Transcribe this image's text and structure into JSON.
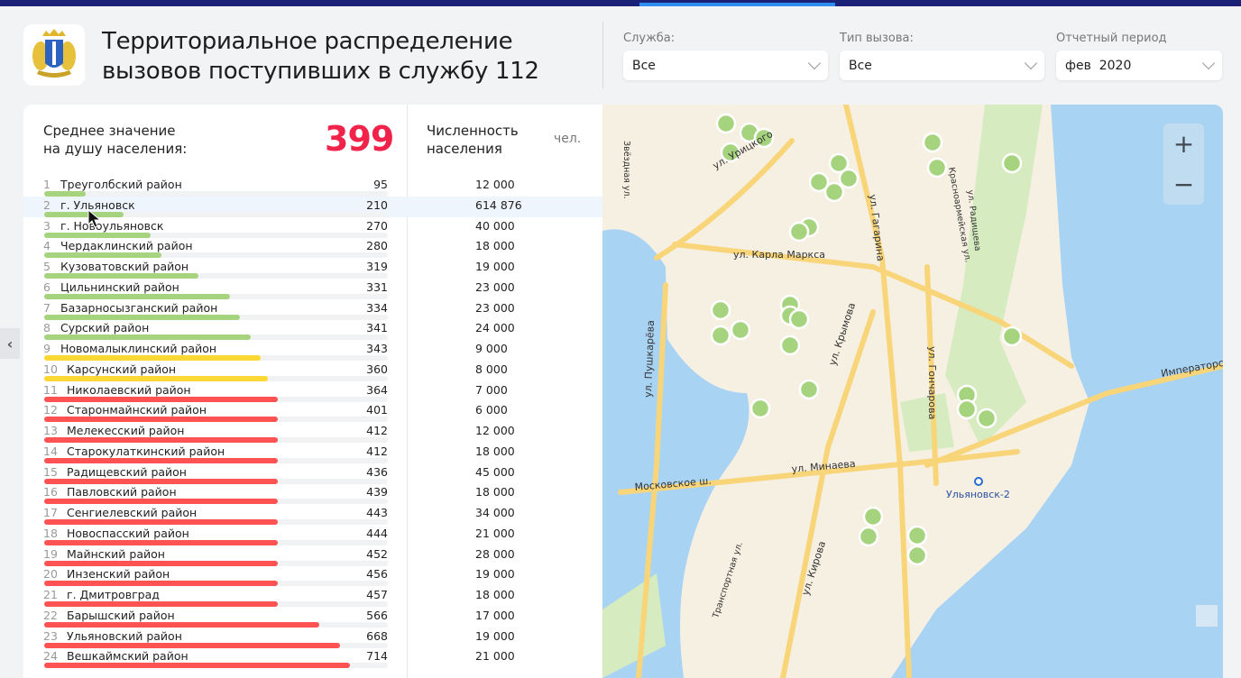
{
  "header": {
    "title_line1": "Территориальное распределение",
    "title_line2": "вызовов поступивших в службу 112"
  },
  "filters": [
    {
      "label": "Служба:",
      "value": "Все"
    },
    {
      "label": "Тип вызова:",
      "value": "Все"
    },
    {
      "label": "Отчетный период",
      "value": "фев  2020"
    }
  ],
  "summary": {
    "label_line1": "Среднее значение",
    "label_line2": "на душу населения:",
    "value": "399",
    "pop_label_line1": "Численность",
    "pop_label_line2": "населения",
    "pop_unit": "чел."
  },
  "colors": {
    "green": "#a6d37d",
    "yellow": "#fdd835",
    "red": "#ff5252",
    "accent": "#f2234a"
  },
  "rows": [
    {
      "n": "1",
      "name": "Треуголбский район",
      "value": "95",
      "population": "12 000",
      "fill": 0.12,
      "color": "green"
    },
    {
      "n": "2",
      "name": "г. Ульяновск",
      "value": "210",
      "population": "614 876",
      "fill": 0.23,
      "color": "green"
    },
    {
      "n": "3",
      "name": "г. Новоульяновск",
      "value": "270",
      "population": "40 000",
      "fill": 0.31,
      "color": "green"
    },
    {
      "n": "4",
      "name": "Чердаклинский район",
      "value": "280",
      "population": "18 000",
      "fill": 0.34,
      "color": "green"
    },
    {
      "n": "5",
      "name": "Кузоватовский район",
      "value": "319",
      "population": "19 000",
      "fill": 0.45,
      "color": "green"
    },
    {
      "n": "6",
      "name": "Цильнинский район",
      "value": "331",
      "population": "23 000",
      "fill": 0.54,
      "color": "green"
    },
    {
      "n": "7",
      "name": "Базарносызганский район",
      "value": "334",
      "population": "23 000",
      "fill": 0.57,
      "color": "green"
    },
    {
      "n": "8",
      "name": "Сурский район",
      "value": "341",
      "population": "24 000",
      "fill": 0.6,
      "color": "green"
    },
    {
      "n": "9",
      "name": "Новомалыклинский район",
      "value": "343",
      "population": "9 000",
      "fill": 0.63,
      "color": "yellow"
    },
    {
      "n": "10",
      "name": "Карсунский район",
      "value": "360",
      "population": "8 000",
      "fill": 0.65,
      "color": "yellow"
    },
    {
      "n": "11",
      "name": "Николаевский район",
      "value": "364",
      "population": "7 000",
      "fill": 0.68,
      "color": "red"
    },
    {
      "n": "12",
      "name": "Старонмайнский район",
      "value": "401",
      "population": "6 000",
      "fill": 0.68,
      "color": "red"
    },
    {
      "n": "13",
      "name": "Мелекесский район",
      "value": "412",
      "population": "12 000",
      "fill": 0.68,
      "color": "red"
    },
    {
      "n": "14",
      "name": "Старокулаткинский район",
      "value": "412",
      "population": "18 000",
      "fill": 0.68,
      "color": "red"
    },
    {
      "n": "15",
      "name": "Радищевский район",
      "value": "436",
      "population": "45 000",
      "fill": 0.68,
      "color": "red"
    },
    {
      "n": "16",
      "name": "Павловский район",
      "value": "439",
      "population": "18 000",
      "fill": 0.68,
      "color": "red"
    },
    {
      "n": "17",
      "name": "Сенгиелевский район",
      "value": "443",
      "population": "34 000",
      "fill": 0.68,
      "color": "red"
    },
    {
      "n": "18",
      "name": "Новоспасский район",
      "value": "444",
      "population": "21 000",
      "fill": 0.68,
      "color": "red"
    },
    {
      "n": "19",
      "name": "Майнский район",
      "value": "452",
      "population": "28 000",
      "fill": 0.68,
      "color": "red"
    },
    {
      "n": "20",
      "name": "Инзенский район",
      "value": "456",
      "population": "19 000",
      "fill": 0.68,
      "color": "red"
    },
    {
      "n": "21",
      "name": "г. Дмитровград",
      "value": "457",
      "population": "18 000",
      "fill": 0.68,
      "color": "red"
    },
    {
      "n": "22",
      "name": "Барышский район",
      "value": "566",
      "population": "17 000",
      "fill": 0.8,
      "color": "red"
    },
    {
      "n": "23",
      "name": "Ульяновский район",
      "value": "668",
      "population": "19 000",
      "fill": 0.86,
      "color": "red"
    },
    {
      "n": "24",
      "name": "Вешкаймский район",
      "value": "714",
      "population": "21 000",
      "fill": 0.89,
      "color": "red"
    }
  ],
  "map": {
    "streets": [
      "ул. Урицкого",
      "ул. Карла Маркса",
      "ул. Гагарина",
      "ул. Пушкарёва",
      "ул. Крымова",
      "ул. Гончарова",
      "ул. Минаева",
      "Московское ш.",
      "ул. Кирова",
      "Транспортная ул.",
      "Красноармейская ул.",
      "ул. Радищева",
      "Звёздная ул.",
      "Императорский мост",
      "Ульяновск-2"
    ],
    "zoom_in": "+",
    "zoom_out": "−"
  }
}
